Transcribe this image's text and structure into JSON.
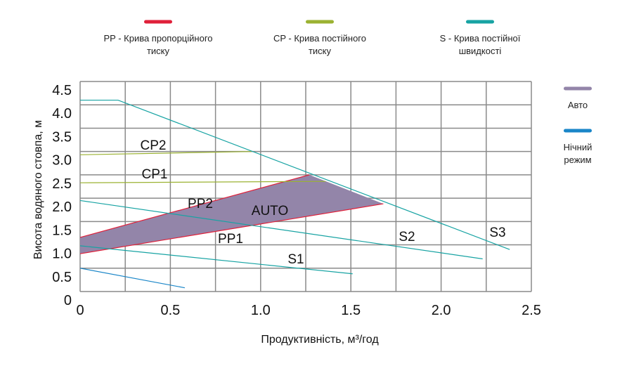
{
  "chart_data": {
    "type": "line",
    "xlabel": "Продуктивність, м³/год",
    "ylabel": "Висота водяного стовпа, м",
    "xlim": [
      0,
      2.5
    ],
    "ylim": [
      0,
      4.5
    ],
    "grid": true,
    "x_ticks": [
      "0",
      "0.5",
      "1.0",
      "1.5",
      "2.0",
      "2.5"
    ],
    "x_tick_values": [
      0,
      0.5,
      1.0,
      1.5,
      2.0,
      2.5
    ],
    "y_ticks": [
      "0",
      "0.5",
      "1.0",
      "1.5",
      "2.0",
      "2.5",
      "3.0",
      "3.5",
      "4.0",
      "4.5"
    ],
    "y_tick_values": [
      0,
      0.5,
      1.0,
      1.5,
      2.0,
      2.5,
      3.0,
      3.5,
      4.0,
      4.5
    ],
    "colors": {
      "pp": "#e0203a",
      "cp": "#9bb232",
      "s": "#17a3a3",
      "auto": "#9385a9",
      "night": "#1a86c8",
      "grid": "#8a8a8a"
    },
    "legend": {
      "placement": "top",
      "entries": [
        {
          "key": "pp",
          "line1": "PP -  Крива пропорційного",
          "line2": "тиску"
        },
        {
          "key": "cp",
          "line1": "CP - Крива постійного",
          "line2": "тиску"
        },
        {
          "key": "s",
          "line1": "S - Крива постійної",
          "line2": "швидкості"
        },
        {
          "key": "auto",
          "line1": "Авто",
          "line2": ""
        },
        {
          "key": "night",
          "line1": "Нічний",
          "line2": "режим"
        }
      ]
    },
    "area": {
      "name": "AUTO",
      "color_key": "auto",
      "points": [
        [
          0,
          1.16
        ],
        [
          1.27,
          2.5
        ],
        [
          1.68,
          1.88
        ],
        [
          0,
          0.81
        ]
      ]
    },
    "series": [
      {
        "name": "PP2",
        "color_key": "pp",
        "points": [
          [
            0,
            1.16
          ],
          [
            1.27,
            2.5
          ]
        ]
      },
      {
        "name": "PP1",
        "color_key": "pp",
        "points": [
          [
            0,
            0.81
          ],
          [
            1.68,
            1.88
          ]
        ]
      },
      {
        "name": "CP2",
        "color_key": "cp",
        "points": [
          [
            0,
            2.93
          ],
          [
            0.95,
            3.0
          ]
        ]
      },
      {
        "name": "CP1",
        "color_key": "cp",
        "points": [
          [
            0,
            2.33
          ],
          [
            1.36,
            2.36
          ]
        ]
      },
      {
        "name": "S3",
        "color_key": "s",
        "points": [
          [
            0,
            4.1
          ],
          [
            0.21,
            4.1
          ],
          [
            2.38,
            0.9
          ]
        ]
      },
      {
        "name": "S2",
        "color_key": "s",
        "points": [
          [
            0,
            1.95
          ],
          [
            2.23,
            0.7
          ]
        ]
      },
      {
        "name": "S1",
        "color_key": "s",
        "points": [
          [
            0,
            0.98
          ],
          [
            1.51,
            0.38
          ]
        ]
      },
      {
        "name": "",
        "color_key": "night",
        "points": [
          [
            0,
            0.5
          ],
          [
            0.58,
            0.08
          ]
        ]
      }
    ],
    "annotations": [
      "CP2",
      "CP1",
      "PP2",
      "AUTO",
      "PP1",
      "S1",
      "S2",
      "S3"
    ]
  }
}
